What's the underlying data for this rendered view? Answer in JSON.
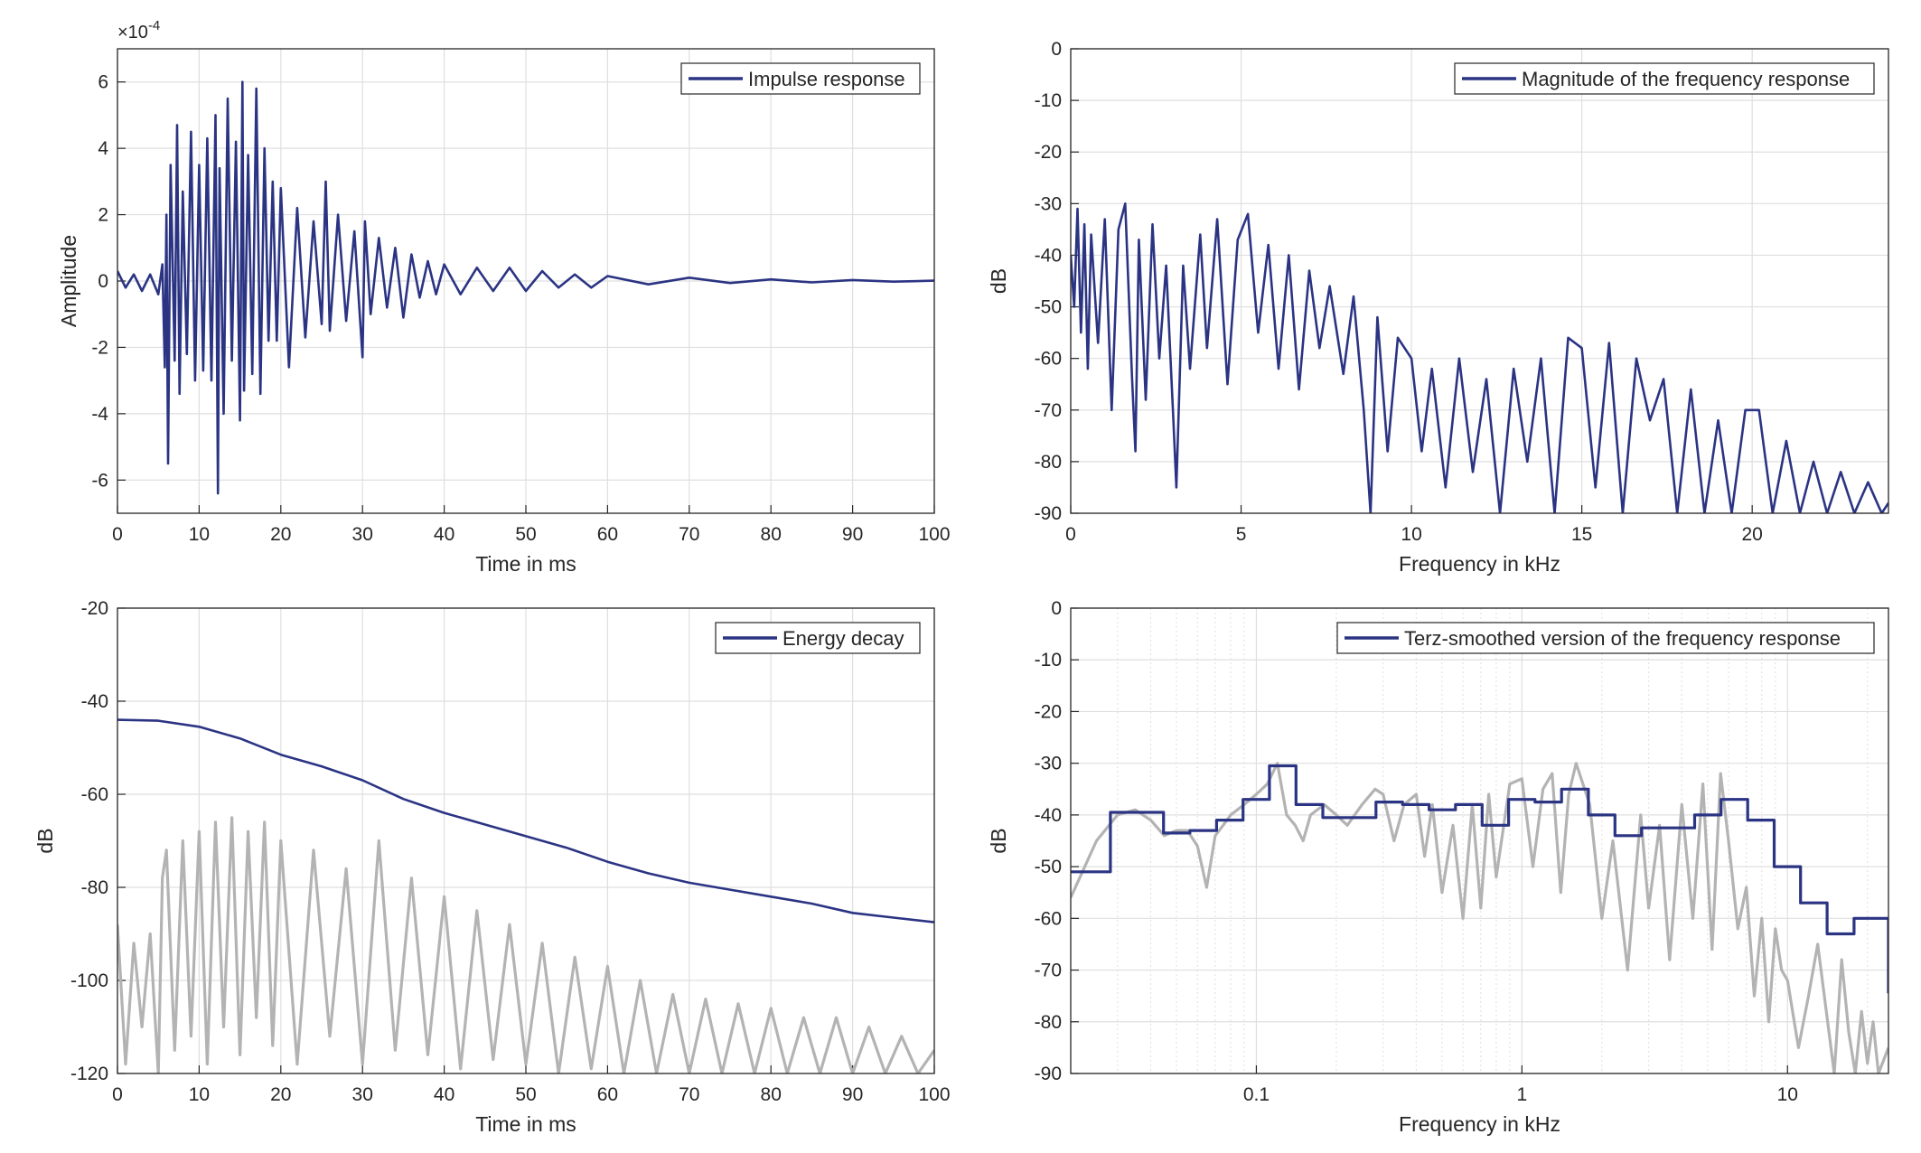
{
  "colors": {
    "series_primary": "#2b3483",
    "series_secondary": "#b3b3b3",
    "axis": "#262626",
    "grid": "#dfdfdf",
    "background": "#ffffff"
  },
  "chart_data": [
    {
      "id": "impulse",
      "type": "line",
      "title": "",
      "xlabel": "Time in ms",
      "ylabel": "Amplitude",
      "exponent_label": "×10-4",
      "exponent_base": "×10",
      "exponent_power": "-4",
      "xlim": [
        0,
        100
      ],
      "ylim": [
        -7,
        7
      ],
      "xscale": "linear",
      "grid": true,
      "legend_position": "top-right",
      "x_ticks": [
        0,
        10,
        20,
        30,
        40,
        50,
        60,
        70,
        80,
        90,
        100
      ],
      "x_tick_labels": [
        "0",
        "10",
        "20",
        "30",
        "40",
        "50",
        "60",
        "70",
        "80",
        "90",
        "100"
      ],
      "y_ticks": [
        -6,
        -4,
        -2,
        0,
        2,
        4,
        6
      ],
      "y_tick_labels": [
        "-6",
        "-4",
        "-2",
        "0",
        "2",
        "4",
        "6"
      ],
      "series": [
        {
          "name": "Impulse response",
          "color": "#2b3483",
          "in_legend": true,
          "x": [
            0,
            1,
            2,
            3,
            4,
            5,
            5.5,
            5.8,
            6.0,
            6.2,
            6.5,
            7,
            7.3,
            7.6,
            8,
            8.5,
            9,
            9.5,
            10,
            10.5,
            11,
            11.5,
            12,
            12.3,
            12.5,
            13,
            13.5,
            14,
            14.5,
            15,
            15.3,
            15.5,
            16,
            16.5,
            17,
            17.5,
            18,
            18.5,
            19,
            19.5,
            20,
            21,
            22,
            23,
            24,
            25,
            25.5,
            26,
            27,
            28,
            29,
            30,
            30.3,
            31,
            32,
            33,
            34,
            35,
            36,
            37,
            38,
            39,
            40,
            42,
            44,
            46,
            48,
            50,
            52,
            54,
            56,
            58,
            60,
            65,
            70,
            75,
            80,
            85,
            90,
            95,
            100
          ],
          "y": [
            0.3,
            -0.2,
            0.2,
            -0.3,
            0.2,
            -0.4,
            0.5,
            -2.6,
            2.0,
            -5.5,
            3.5,
            -2.4,
            4.7,
            -3.4,
            2.7,
            -2.2,
            4.5,
            -3.0,
            3.5,
            -2.7,
            4.3,
            -3.0,
            5.0,
            -6.4,
            3.4,
            -4.0,
            5.5,
            -2.4,
            4.2,
            -4.2,
            6.0,
            -3.3,
            3.8,
            -2.8,
            5.8,
            -3.4,
            4.0,
            -1.8,
            3.0,
            -1.8,
            2.8,
            -2.6,
            2.2,
            -1.7,
            1.8,
            -1.3,
            3.0,
            -1.5,
            2.0,
            -1.2,
            1.5,
            -2.3,
            1.8,
            -1.0,
            1.3,
            -0.8,
            1.0,
            -1.1,
            0.8,
            -0.5,
            0.6,
            -0.4,
            0.5,
            -0.4,
            0.4,
            -0.3,
            0.4,
            -0.3,
            0.3,
            -0.2,
            0.2,
            -0.2,
            0.15,
            -0.1,
            0.1,
            -0.06,
            0.05,
            -0.04,
            0.03,
            -0.02,
            0.01
          ]
        }
      ]
    },
    {
      "id": "magnitude",
      "type": "line",
      "title": "",
      "xlabel": "Frequency in kHz",
      "ylabel": "dB",
      "xlim": [
        0,
        24
      ],
      "ylim": [
        -90,
        0
      ],
      "xscale": "linear",
      "grid": true,
      "legend_position": "top-right",
      "x_ticks": [
        0,
        5,
        10,
        15,
        20
      ],
      "x_tick_labels": [
        "0",
        "5",
        "10",
        "15",
        "20"
      ],
      "y_ticks": [
        -90,
        -80,
        -70,
        -60,
        -50,
        -40,
        -30,
        -20,
        -10,
        0
      ],
      "y_tick_labels": [
        "-90",
        "-80",
        "-70",
        "-60",
        "-50",
        "-40",
        "-30",
        "-20",
        "-10",
        "0"
      ],
      "series": [
        {
          "name": "Magnitude of the frequency response",
          "color": "#2b3483",
          "in_legend": true,
          "x": [
            0,
            0.1,
            0.2,
            0.3,
            0.4,
            0.5,
            0.6,
            0.8,
            1.0,
            1.2,
            1.4,
            1.6,
            1.8,
            1.9,
            2.0,
            2.2,
            2.4,
            2.6,
            2.8,
            3.0,
            3.1,
            3.3,
            3.5,
            3.8,
            4.0,
            4.3,
            4.6,
            4.9,
            5.2,
            5.5,
            5.8,
            6.1,
            6.4,
            6.7,
            7.0,
            7.3,
            7.6,
            8.0,
            8.3,
            8.6,
            8.8,
            9.0,
            9.3,
            9.6,
            10.0,
            10.3,
            10.6,
            11.0,
            11.4,
            11.8,
            12.2,
            12.6,
            13.0,
            13.4,
            13.8,
            14.2,
            14.6,
            15.0,
            15.4,
            15.8,
            16.2,
            16.6,
            17.0,
            17.4,
            17.8,
            18.2,
            18.6,
            19.0,
            19.4,
            19.8,
            20.2,
            20.6,
            21.0,
            21.4,
            21.8,
            22.2,
            22.6,
            23.0,
            23.4,
            23.8,
            24.0
          ],
          "y": [
            -40,
            -50,
            -31,
            -55,
            -34,
            -62,
            -36,
            -57,
            -33,
            -70,
            -35,
            -30,
            -64,
            -78,
            -37,
            -68,
            -34,
            -60,
            -42,
            -70,
            -85,
            -42,
            -62,
            -36,
            -58,
            -33,
            -65,
            -37,
            -32,
            -55,
            -38,
            -62,
            -40,
            -66,
            -43,
            -58,
            -46,
            -63,
            -48,
            -70,
            -90,
            -52,
            -78,
            -56,
            -60,
            -78,
            -62,
            -85,
            -60,
            -82,
            -64,
            -90,
            -62,
            -80,
            -60,
            -90,
            -56,
            -58,
            -85,
            -57,
            -90,
            -60,
            -72,
            -64,
            -90,
            -66,
            -90,
            -72,
            -90,
            -70,
            -70,
            -90,
            -76,
            -90,
            -80,
            -90,
            -82,
            -90,
            -84,
            -90,
            -88
          ]
        }
      ]
    },
    {
      "id": "energy",
      "type": "line",
      "title": "",
      "xlabel": "Time in ms",
      "ylabel": "dB",
      "xlim": [
        0,
        100
      ],
      "ylim": [
        -120,
        -20
      ],
      "xscale": "linear",
      "grid": true,
      "legend_position": "top-right",
      "x_ticks": [
        0,
        10,
        20,
        30,
        40,
        50,
        60,
        70,
        80,
        90,
        100
      ],
      "x_tick_labels": [
        "0",
        "10",
        "20",
        "30",
        "40",
        "50",
        "60",
        "70",
        "80",
        "90",
        "100"
      ],
      "y_ticks": [
        -120,
        -100,
        -80,
        -60,
        -40,
        -20
      ],
      "y_tick_labels": [
        "-120",
        "-100",
        "-80",
        "-60",
        "-40",
        "-20"
      ],
      "series": [
        {
          "name": "",
          "color": "#b3b3b3",
          "in_legend": false,
          "x": [
            0,
            1,
            2,
            3,
            4,
            5,
            5.5,
            6,
            7,
            8,
            9,
            10,
            11,
            12,
            13,
            14,
            15,
            16,
            17,
            18,
            19,
            20,
            22,
            24,
            26,
            28,
            30,
            32,
            34,
            36,
            38,
            40,
            42,
            44,
            46,
            48,
            50,
            52,
            54,
            56,
            58,
            60,
            62,
            64,
            66,
            68,
            70,
            72,
            74,
            76,
            78,
            80,
            82,
            84,
            86,
            88,
            90,
            92,
            94,
            96,
            98,
            100
          ],
          "y": [
            -88,
            -118,
            -92,
            -110,
            -90,
            -120,
            -78,
            -72,
            -115,
            -70,
            -112,
            -68,
            -118,
            -66,
            -110,
            -65,
            -116,
            -68,
            -108,
            -66,
            -114,
            -70,
            -118,
            -72,
            -112,
            -76,
            -118,
            -70,
            -115,
            -78,
            -116,
            -82,
            -119,
            -85,
            -117,
            -88,
            -118,
            -92,
            -120,
            -95,
            -119,
            -97,
            -120,
            -100,
            -120,
            -103,
            -120,
            -104,
            -120,
            -105,
            -120,
            -106,
            -120,
            -108,
            -120,
            -108,
            -120,
            -110,
            -120,
            -112,
            -120,
            -115
          ]
        },
        {
          "name": "Energy decay",
          "color": "#2b3483",
          "in_legend": true,
          "x": [
            0,
            5,
            10,
            15,
            20,
            25,
            30,
            35,
            40,
            45,
            50,
            55,
            60,
            65,
            70,
            75,
            80,
            85,
            90,
            95,
            100
          ],
          "y": [
            -44,
            -44.2,
            -45.5,
            -48,
            -51.5,
            -54,
            -57,
            -61,
            -64,
            -66.5,
            -69,
            -71.5,
            -74.5,
            -77,
            -79,
            -80.5,
            -82,
            -83.5,
            -85.5,
            -86.5,
            -87.5
          ]
        }
      ]
    },
    {
      "id": "terz",
      "type": "line",
      "title": "",
      "xlabel": "Frequency in kHz",
      "ylabel": "dB",
      "xlim": [
        0.02,
        24
      ],
      "ylim": [
        -90,
        0
      ],
      "xscale": "log",
      "grid": true,
      "legend_position": "top-right",
      "x_ticks": [
        0.1,
        1,
        10
      ],
      "x_tick_labels": [
        "0.1",
        "1",
        "10"
      ],
      "y_ticks": [
        -90,
        -80,
        -70,
        -60,
        -50,
        -40,
        -30,
        -20,
        -10,
        0
      ],
      "y_tick_labels": [
        "-90",
        "-80",
        "-70",
        "-60",
        "-50",
        "-40",
        "-30",
        "-20",
        "-10",
        "0"
      ],
      "series": [
        {
          "name": "",
          "color": "#b3b3b3",
          "in_legend": false,
          "x": [
            0.02,
            0.025,
            0.03,
            0.035,
            0.04,
            0.045,
            0.05,
            0.055,
            0.06,
            0.065,
            0.07,
            0.075,
            0.08,
            0.09,
            0.1,
            0.11,
            0.12,
            0.13,
            0.14,
            0.15,
            0.16,
            0.18,
            0.2,
            0.22,
            0.25,
            0.28,
            0.3,
            0.33,
            0.36,
            0.4,
            0.43,
            0.46,
            0.5,
            0.55,
            0.6,
            0.65,
            0.7,
            0.75,
            0.8,
            0.9,
            1.0,
            1.1,
            1.2,
            1.3,
            1.4,
            1.5,
            1.6,
            1.8,
            2.0,
            2.2,
            2.5,
            2.8,
            3.0,
            3.3,
            3.6,
            4.0,
            4.4,
            4.8,
            5.2,
            5.6,
            6.0,
            6.5,
            7.0,
            7.5,
            8.0,
            8.5,
            9.0,
            9.5,
            10,
            11,
            12,
            13,
            14,
            15,
            16,
            17,
            18,
            19,
            20,
            21,
            22,
            24
          ],
          "y": [
            -56,
            -45,
            -40,
            -39,
            -41,
            -44,
            -43,
            -43,
            -46,
            -54,
            -44,
            -42,
            -40,
            -38,
            -36,
            -34,
            -30,
            -40,
            -42,
            -45,
            -40,
            -38,
            -40,
            -42,
            -38,
            -35,
            -36,
            -45,
            -38,
            -36,
            -48,
            -38,
            -55,
            -42,
            -60,
            -38,
            -58,
            -36,
            -52,
            -34,
            -33,
            -50,
            -35,
            -32,
            -55,
            -36,
            -30,
            -38,
            -60,
            -45,
            -70,
            -40,
            -58,
            -42,
            -68,
            -38,
            -60,
            -34,
            -66,
            -32,
            -45,
            -62,
            -54,
            -75,
            -60,
            -80,
            -62,
            -70,
            -72,
            -85,
            -75,
            -65,
            -78,
            -90,
            -68,
            -82,
            -90,
            -78,
            -88,
            -80,
            -90,
            -85
          ]
        },
        {
          "name": "Terz-smoothed version of the frequency response",
          "color": "#2b3483",
          "in_legend": true,
          "step_edges": [
            0.02,
            0.0282,
            0.0447,
            0.0562,
            0.0708,
            0.0891,
            0.112,
            0.141,
            0.178,
            0.224,
            0.282,
            0.355,
            0.447,
            0.562,
            0.708,
            0.891,
            1.12,
            1.41,
            1.78,
            2.24,
            2.82,
            3.55,
            4.47,
            5.62,
            7.08,
            8.91,
            11.2,
            14.1,
            17.8,
            24
          ],
          "step_values": [
            -51,
            -39.5,
            -43.5,
            -43,
            -41,
            -37,
            -30.5,
            -38,
            -40.5,
            -40.5,
            -37.5,
            -38,
            -39,
            -38,
            -42,
            -37,
            -37.5,
            -35,
            -40,
            -44,
            -42.5,
            -42.5,
            -40,
            -37,
            -41,
            -50,
            -57,
            -63,
            -60,
            -74.5
          ]
        }
      ]
    }
  ]
}
